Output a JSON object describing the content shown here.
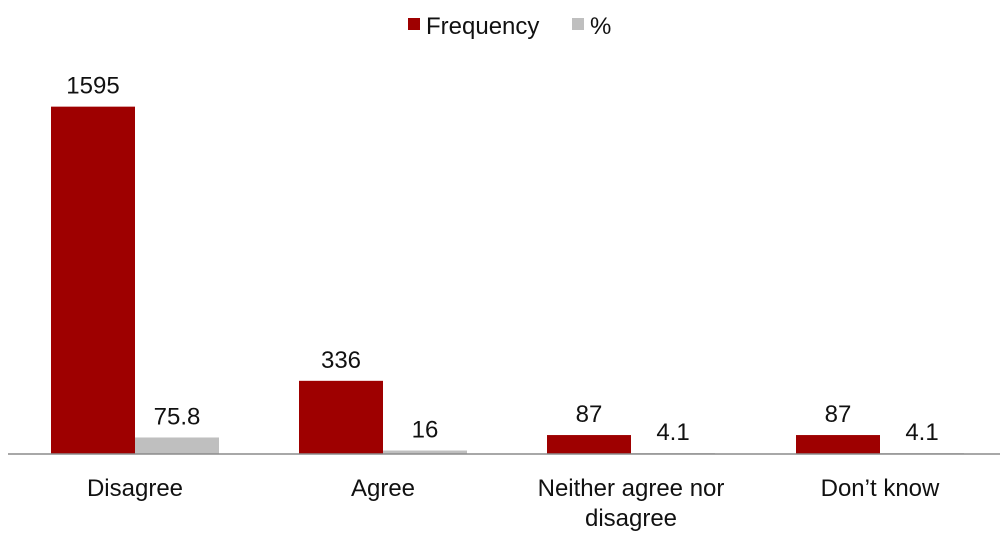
{
  "chart_data": {
    "type": "bar",
    "categories": [
      "Disagree",
      "Agree",
      "Neither agree nor disagree",
      "Don’t know"
    ],
    "series": [
      {
        "name": "Frequency",
        "values": [
          1595,
          336,
          87,
          87
        ],
        "color": "#9E0000"
      },
      {
        "name": "%",
        "values": [
          75.8,
          16,
          4.1,
          4.1
        ],
        "color": "#BFBFBF"
      }
    ],
    "data_labels": [
      [
        "1595",
        "336",
        "87",
        "87"
      ],
      [
        "75.8",
        "16",
        "4.1",
        "4.1"
      ]
    ],
    "ylim": [
      0,
      1800
    ],
    "grid": false,
    "legend_position": "top-center",
    "title": "",
    "xlabel": "",
    "ylabel": ""
  }
}
